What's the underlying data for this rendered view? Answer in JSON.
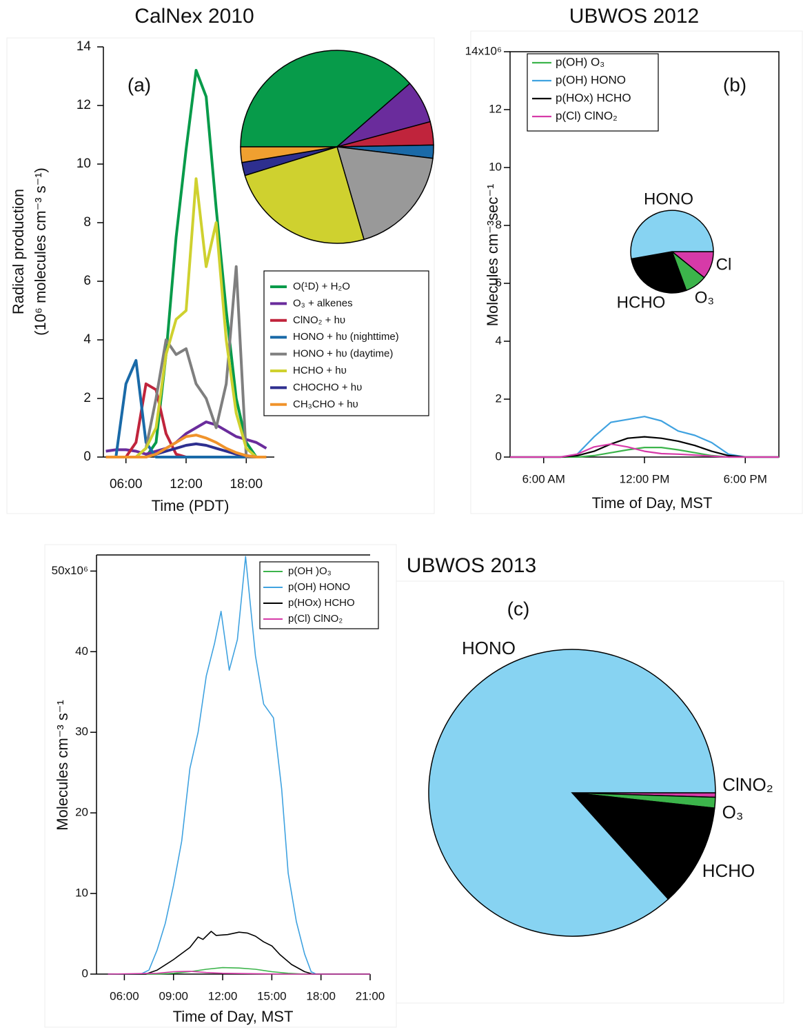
{
  "chart_data": [
    {
      "type": "line",
      "title": "CalNex 2010",
      "annotation": "(a)",
      "xlabel": "Time (PDT)",
      "ylabel": [
        "Radical production",
        "(10⁶ molecules cm⁻³ s⁻¹)"
      ],
      "xlim": [
        3.75,
        20.8
      ],
      "ylim": [
        0,
        14
      ],
      "xticks": [
        {
          "value": 6,
          "label": "06:00"
        },
        {
          "value": 12,
          "label": "12:00"
        },
        {
          "value": 18,
          "label": "18:00"
        }
      ],
      "yticks": [
        0,
        2,
        4,
        6,
        8,
        10,
        12,
        14
      ],
      "x": [
        4,
        5,
        6,
        7,
        8,
        9,
        10,
        11,
        12,
        13,
        14,
        15,
        16,
        17,
        18,
        19,
        20
      ],
      "series": [
        {
          "name": "O(¹D) + H₂O",
          "color": "#079b4a",
          "values": [
            0,
            0,
            0,
            0,
            0,
            0.5,
            3.5,
            7.5,
            10.5,
            13.2,
            12.3,
            8.5,
            5,
            2,
            0.5,
            0,
            0
          ]
        },
        {
          "name": "O₃ + alkenes",
          "color": "#6a2c9c",
          "values": [
            0.2,
            0.25,
            0.25,
            0.2,
            0.1,
            0.2,
            0.3,
            0.5,
            0.8,
            1.0,
            1.2,
            1.1,
            0.9,
            0.7,
            0.6,
            0.5,
            0.3
          ]
        },
        {
          "name": "ClNO₂ + hυ",
          "color": "#c0243c",
          "values": [
            0,
            0,
            0,
            0.5,
            2.5,
            2.3,
            0.8,
            0.1,
            0,
            0,
            0,
            0,
            0,
            0,
            0,
            0,
            0
          ]
        },
        {
          "name": "HONO + hυ (nighttime)",
          "color": "#1a6aa8",
          "values": [
            0,
            0,
            2.5,
            3.3,
            0.5,
            0,
            0,
            0,
            0,
            0,
            0,
            0,
            0,
            0,
            0,
            0,
            0
          ]
        },
        {
          "name": "HONO + hυ (daytime)",
          "color": "#7f7f7f",
          "values": [
            0,
            0,
            0,
            0,
            0.3,
            2,
            4,
            3.5,
            3.7,
            2.5,
            2,
            1,
            2.5,
            6.5,
            0,
            0,
            0
          ]
        },
        {
          "name": "HCHO + hυ",
          "color": "#cfd12f",
          "values": [
            0,
            0,
            0,
            0,
            0.3,
            1,
            3.5,
            4.7,
            5,
            9.5,
            6.5,
            8,
            4,
            1.5,
            0.3,
            0,
            0
          ]
        },
        {
          "name": "CHOCHO + hυ",
          "color": "#2e2f8f",
          "values": [
            0,
            0,
            0,
            0,
            0,
            0.1,
            0.2,
            0.3,
            0.4,
            0.45,
            0.4,
            0.3,
            0.2,
            0.1,
            0.05,
            0,
            0
          ]
        },
        {
          "name": "CH₃CHO + hυ",
          "color": "#f0932b",
          "values": [
            0,
            0,
            0,
            0,
            0,
            0.1,
            0.3,
            0.5,
            0.7,
            0.75,
            0.65,
            0.5,
            0.3,
            0.15,
            0.05,
            0,
            0
          ]
        }
      ]
    },
    {
      "type": "pie",
      "values": [
        38.6,
        7.2,
        3.9,
        2.2,
        18.6,
        24.7,
        2.2,
        2.6
      ],
      "colors": [
        "#079b4a",
        "#6a2c9c",
        "#c0243c",
        "#1a6aa8",
        "#999999",
        "#cfd12f",
        "#2e2f8f",
        "#f0a030"
      ]
    },
    {
      "type": "line",
      "title": "UBWOS 2012",
      "annotation": "(b)",
      "xlabel": "Time of Day, MST",
      "ylabel": "Molecules cm⁻³sec⁻¹",
      "xlim": [
        4,
        20
      ],
      "ylim": [
        0,
        14
      ],
      "xticks": [
        {
          "value": 6,
          "label": "6:00 AM"
        },
        {
          "value": 12,
          "label": "12:00 PM"
        },
        {
          "value": 18,
          "label": "6:00 PM"
        }
      ],
      "yticks": [
        0,
        2,
        4,
        6,
        8,
        10,
        12,
        {
          "value": 14,
          "label": "14x10⁶"
        }
      ],
      "x": [
        4,
        5,
        6,
        7,
        8,
        9,
        10,
        11,
        12,
        13,
        14,
        15,
        16,
        17,
        18,
        19,
        20
      ],
      "series": [
        {
          "name": "p(OH) O₃",
          "color": "#3cb44b",
          "values": [
            0,
            0,
            0,
            0,
            0,
            0.05,
            0.15,
            0.25,
            0.33,
            0.33,
            0.25,
            0.15,
            0.05,
            0,
            0,
            0,
            0
          ]
        },
        {
          "name": "p(OH) HONO",
          "color": "#3fa2e0",
          "values": [
            0,
            0,
            0,
            0,
            0.1,
            0.7,
            1.2,
            1.3,
            1.4,
            1.25,
            0.9,
            0.75,
            0.5,
            0.1,
            0,
            0,
            0
          ]
        },
        {
          "name": "p(HOx) HCHO",
          "color": "#000000",
          "values": [
            0,
            0,
            0,
            0,
            0.05,
            0.2,
            0.45,
            0.65,
            0.7,
            0.65,
            0.55,
            0.4,
            0.2,
            0.05,
            0,
            0,
            0
          ]
        },
        {
          "name": "p(Cl) ClNO₂",
          "color": "#d63aa8",
          "values": [
            0,
            0,
            0,
            0,
            0.1,
            0.35,
            0.45,
            0.35,
            0.2,
            0.12,
            0.1,
            0.07,
            0.03,
            0,
            0,
            0,
            0
          ]
        }
      ]
    },
    {
      "type": "pie",
      "categories": [
        "Cl",
        "O₃",
        "HCHO",
        "HONO"
      ],
      "values": [
        10.8,
        8.6,
        27.8,
        52.8
      ],
      "colors": [
        "#d63aa8",
        "#3cb44b",
        "#000000",
        "#87d3f2"
      ]
    },
    {
      "type": "line",
      "xlabel": "Time of Day, MST",
      "ylabel": "Molecules cm⁻³ s⁻¹",
      "xlim": [
        4.3,
        21
      ],
      "ylim": [
        0,
        52
      ],
      "xticks": [
        {
          "value": 6,
          "label": "06:00"
        },
        {
          "value": 9,
          "label": "09:00"
        },
        {
          "value": 12,
          "label": "12:00"
        },
        {
          "value": 15,
          "label": "15:00"
        },
        {
          "value": 18,
          "label": "18:00"
        },
        {
          "value": 21,
          "label": "21:00"
        }
      ],
      "yticks": [
        0,
        10,
        20,
        30,
        40,
        {
          "value": 50,
          "label": "50x10⁶"
        }
      ],
      "series": [
        {
          "name": "p(OH )O₃",
          "color": "#3cb44b",
          "x": [
            5,
            8,
            9,
            10,
            11,
            12,
            13,
            14,
            15,
            16,
            17,
            21
          ],
          "values": [
            0,
            0,
            0.1,
            0.3,
            0.6,
            0.8,
            0.75,
            0.6,
            0.3,
            0.1,
            0,
            0
          ]
        },
        {
          "name": "p(OH) HONO",
          "color": "#3fa2e0",
          "x": [
            5,
            7,
            7.5,
            8,
            8.5,
            9,
            9.5,
            10,
            10.5,
            11,
            11.5,
            11.9,
            12.4,
            12.9,
            13.4,
            14,
            14.5,
            15.1,
            15.6,
            16,
            16.5,
            17,
            17.4,
            17.7,
            21
          ],
          "values": [
            0,
            0,
            0.5,
            3,
            6.3,
            11,
            16.5,
            25.5,
            30,
            37,
            41,
            45,
            37.7,
            41.5,
            51.8,
            39.5,
            33.5,
            31.8,
            23,
            12.5,
            6.5,
            2.5,
            0.3,
            0,
            0
          ]
        },
        {
          "name": "p(HOx) HCHO",
          "color": "#000000",
          "x": [
            5,
            7.3,
            8,
            9,
            10,
            10.5,
            10.8,
            11.3,
            11.6,
            12.3,
            13,
            13.5,
            14,
            14.5,
            15,
            15.5,
            16.2,
            17,
            17.5,
            21
          ],
          "values": [
            0,
            0,
            0.5,
            1.8,
            3.3,
            4.6,
            4.3,
            5.3,
            4.8,
            4.9,
            5.2,
            5.1,
            4.7,
            4.0,
            3.5,
            2.4,
            1.2,
            0.3,
            0,
            0
          ]
        },
        {
          "name": "p(Cl) ClNO₂",
          "color": "#d63aa8",
          "x": [
            5,
            8,
            9,
            10,
            11,
            12,
            14,
            16,
            21
          ],
          "values": [
            0,
            0.1,
            0.3,
            0.35,
            0.2,
            0.1,
            0.05,
            0,
            0
          ]
        }
      ]
    },
    {
      "type": "pie",
      "title": "UBWOS 2013",
      "annotation": "(c)",
      "categories": [
        "ClNO₂",
        "O₃",
        "HCHO",
        "HONO"
      ],
      "values": [
        0.5,
        1.2,
        11.6,
        86.7
      ],
      "colors": [
        "#d63aa8",
        "#3cb44b",
        "#000000",
        "#87d3f2"
      ]
    }
  ]
}
